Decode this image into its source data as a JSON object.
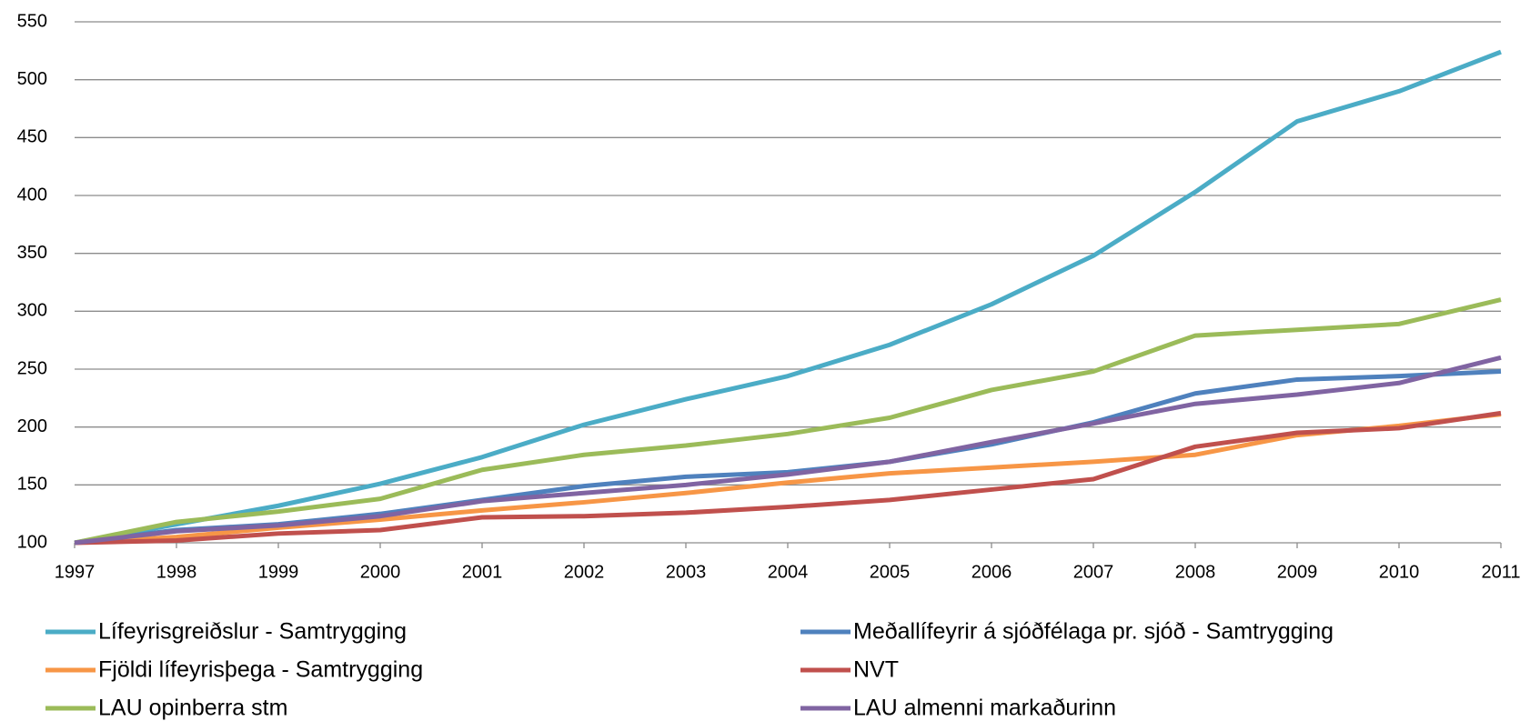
{
  "chart_data": {
    "type": "line",
    "x": [
      1997,
      1998,
      1999,
      2000,
      2001,
      2002,
      2003,
      2004,
      2005,
      2006,
      2007,
      2008,
      2009,
      2010,
      2011
    ],
    "xlim": [
      1997,
      2011
    ],
    "xticks": [
      1997,
      1998,
      1999,
      2000,
      2001,
      2002,
      2003,
      2004,
      2005,
      2006,
      2007,
      2008,
      2009,
      2010,
      2011
    ],
    "ylim": [
      100,
      550
    ],
    "yticks": [
      100,
      150,
      200,
      250,
      300,
      350,
      400,
      450,
      500,
      550
    ],
    "grid": true,
    "legend": "bottom",
    "series": [
      {
        "name": "Lífeyrisgreiðslur - Samtrygging",
        "color": "#4bacc6",
        "values": [
          100,
          116,
          132,
          151,
          174,
          202,
          224,
          244,
          271,
          306,
          348,
          403,
          464,
          490,
          524
        ]
      },
      {
        "name": "Meðallífeyrir á sjóðfélaga pr. sjóð - Samtrygging",
        "color": "#4f81bd",
        "values": [
          100,
          111,
          116,
          125,
          137,
          149,
          157,
          161,
          170,
          185,
          204,
          229,
          241,
          244,
          248
        ]
      },
      {
        "name": "Fjöldi lífeyrisþega - Samtrygging",
        "color": "#f79646",
        "values": [
          100,
          105,
          113,
          120,
          128,
          135,
          143,
          152,
          160,
          165,
          170,
          176,
          193,
          201,
          211
        ]
      },
      {
        "name": "NVT",
        "color": "#c0504d",
        "values": [
          100,
          102,
          108,
          111,
          122,
          123,
          126,
          131,
          137,
          146,
          155,
          183,
          195,
          199,
          212
        ]
      },
      {
        "name": "LAU opinberra stm",
        "color": "#9bbb59",
        "values": [
          100,
          118,
          127,
          138,
          163,
          176,
          184,
          194,
          208,
          232,
          248,
          279,
          284,
          289,
          310
        ]
      },
      {
        "name": "LAU almenni markaðurinn",
        "color": "#8064a2",
        "values": [
          100,
          110,
          115,
          123,
          136,
          143,
          150,
          159,
          170,
          187,
          203,
          220,
          228,
          238,
          260
        ]
      }
    ]
  }
}
